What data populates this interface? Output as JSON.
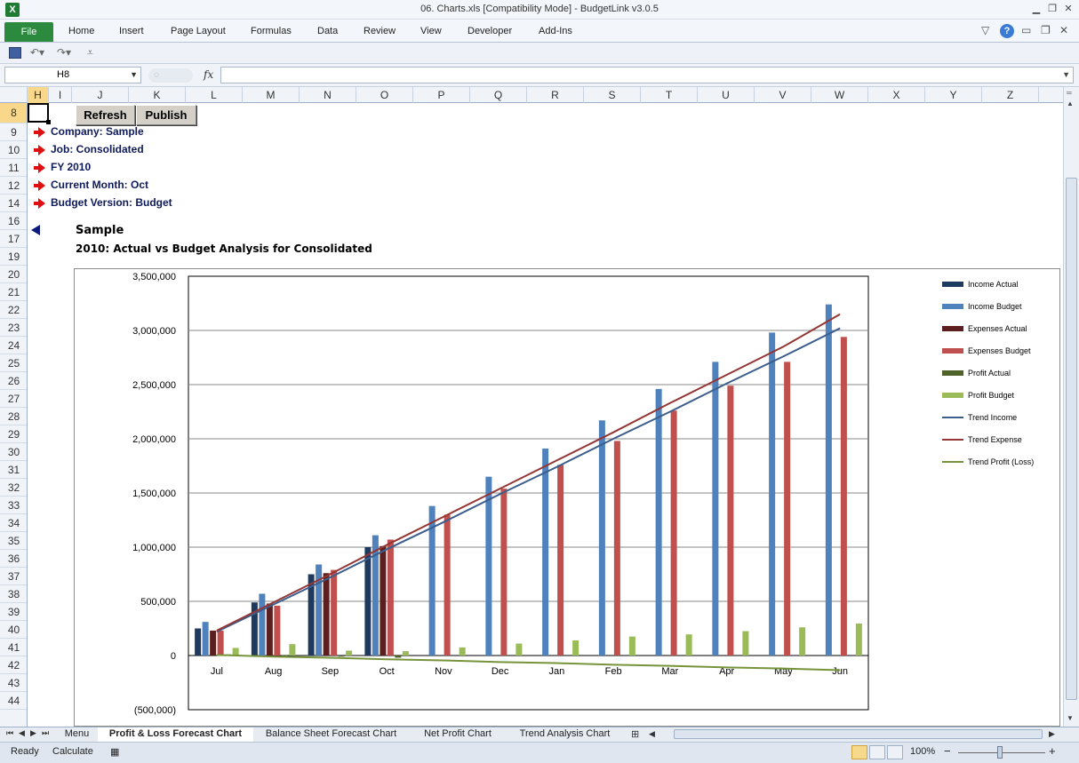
{
  "window": {
    "title": "06. Charts.xls  [Compatibility Mode]  -  BudgetLink v3.0.5",
    "app_icon": "X",
    "controls": [
      "minimize-icon",
      "restore-icon",
      "close-icon"
    ]
  },
  "ribbon": {
    "file_label": "File",
    "tabs": [
      "Home",
      "Insert",
      "Page Layout",
      "Formulas",
      "Data",
      "Review",
      "View",
      "Developer",
      "Add-Ins"
    ]
  },
  "formula_bar": {
    "name_box": "H8",
    "fx_label": "fx",
    "formula": ""
  },
  "grid": {
    "columns": [
      "H",
      "I",
      "J",
      "K",
      "L",
      "M",
      "N",
      "O",
      "P",
      "Q",
      "R",
      "S",
      "T",
      "U",
      "V",
      "W",
      "X",
      "Y",
      "Z"
    ],
    "selected_column": "H",
    "rows": [
      "8",
      "9",
      "10",
      "11",
      "12",
      "14",
      "16",
      "17",
      "19",
      "20",
      "21",
      "22",
      "23",
      "24",
      "25",
      "26",
      "27",
      "28",
      "29",
      "30",
      "31",
      "32",
      "33",
      "34",
      "35",
      "36",
      "37",
      "38",
      "39",
      "40",
      "41",
      "42",
      "43",
      "44"
    ],
    "selected_row": "8"
  },
  "sheet": {
    "refresh_label": "Refresh",
    "publish_label": "Publish",
    "info": [
      "Company: Sample",
      "Job: Consolidated",
      "FY 2010",
      "Current Month: Oct",
      "Budget Version: Budget"
    ],
    "title": "Sample",
    "subtitle": "2010: Actual vs Budget Analysis for Consolidated"
  },
  "chart_data": {
    "type": "bar",
    "title": "",
    "categories": [
      "Jul",
      "Aug",
      "Sep",
      "Oct",
      "Nov",
      "Dec",
      "Jan",
      "Feb",
      "Mar",
      "Apr",
      "May",
      "Jun"
    ],
    "ylim": [
      -500000,
      3500000
    ],
    "yticks": [
      -500000,
      0,
      500000,
      1000000,
      1500000,
      2000000,
      2500000,
      3000000,
      3500000
    ],
    "ytick_labels": [
      "(500,000)",
      "0",
      "500,000",
      "1,000,000",
      "1,500,000",
      "2,000,000",
      "2,500,000",
      "3,000,000",
      "3,500,000"
    ],
    "grid": true,
    "legend_position": "right",
    "series": [
      {
        "name": "Income Actual",
        "kind": "bar",
        "color": "#1f3a5f",
        "values": [
          250000,
          490000,
          750000,
          1000000,
          null,
          null,
          null,
          null,
          null,
          null,
          null,
          null
        ]
      },
      {
        "name": "Income Budget",
        "kind": "bar",
        "color": "#4f81bd",
        "values": [
          310000,
          570000,
          840000,
          1110000,
          1380000,
          1650000,
          1910000,
          2170000,
          2460000,
          2710000,
          2980000,
          3240000
        ]
      },
      {
        "name": "Expenses Actual",
        "kind": "bar",
        "color": "#5b1f1f",
        "values": [
          230000,
          480000,
          760000,
          1010000,
          null,
          null,
          null,
          null,
          null,
          null,
          null,
          null
        ]
      },
      {
        "name": "Expenses Budget",
        "kind": "bar",
        "color": "#c0504d",
        "values": [
          230000,
          460000,
          790000,
          1070000,
          1300000,
          1540000,
          1760000,
          1980000,
          2260000,
          2490000,
          2710000,
          2940000
        ]
      },
      {
        "name": "Profit Actual",
        "kind": "bar",
        "color": "#4f6228",
        "values": [
          10000,
          5000,
          -10000,
          -20000,
          null,
          null,
          null,
          null,
          null,
          null,
          null,
          null
        ]
      },
      {
        "name": "Profit Budget",
        "kind": "bar",
        "color": "#9bbb59",
        "values": [
          70000,
          105000,
          45000,
          40000,
          75000,
          110000,
          140000,
          175000,
          195000,
          225000,
          260000,
          295000
        ]
      },
      {
        "name": "Trend Income",
        "kind": "line",
        "color": "#3b5e8c",
        "values": [
          220000,
          470000,
          720000,
          980000,
          1230000,
          1490000,
          1740000,
          2000000,
          2250000,
          2510000,
          2760000,
          3020000
        ]
      },
      {
        "name": "Trend Expense",
        "kind": "line",
        "color": "#943634",
        "values": [
          230000,
          490000,
          750000,
          1020000,
          1280000,
          1540000,
          1800000,
          2060000,
          2330000,
          2590000,
          2850000,
          3150000
        ]
      },
      {
        "name": "Trend Profit (Loss)",
        "kind": "line",
        "color": "#77933c",
        "values": [
          5000,
          -10000,
          -20000,
          -35000,
          -45000,
          -60000,
          -70000,
          -85000,
          -95000,
          -110000,
          -120000,
          -135000
        ]
      }
    ]
  },
  "sheet_tabs": [
    "Menu",
    "Profit & Loss Forecast Chart",
    "Balance Sheet Forecast Chart",
    "Net Profit Chart",
    "Trend Analysis Chart"
  ],
  "active_sheet_tab": "Profit & Loss Forecast Chart",
  "status": {
    "ready": "Ready",
    "calculate": "Calculate",
    "zoom": "100%",
    "zoom_minus": "−",
    "zoom_plus": "+"
  }
}
